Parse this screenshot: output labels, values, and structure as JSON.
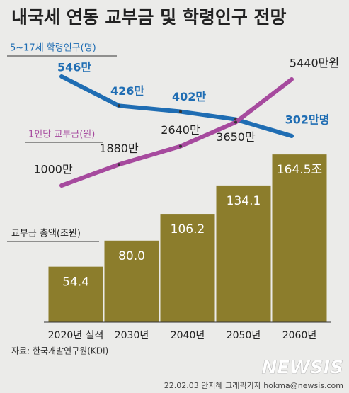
{
  "chart_data": {
    "type": "bar",
    "title": "내국세 연동 교부금 및 학령인구 전망",
    "categories": [
      "2020년 실적",
      "2030년",
      "2040년",
      "2050년",
      "2060년"
    ],
    "values": [
      54.4,
      80.0,
      106.2,
      134.1,
      164.5
    ],
    "value_labels": [
      "54.4",
      "80.0",
      "106.2",
      "134.1",
      "164.5조"
    ],
    "name": "교부금 총액(조원)",
    "color": "#8c7d2c",
    "lines": [
      {
        "name": "5~17세 학령인구(명)",
        "color": "#1f6db3",
        "values": [
          546,
          426,
          402,
          370,
          302
        ],
        "value_labels": [
          "546만",
          "426만",
          "402만",
          null,
          "302만명"
        ]
      },
      {
        "name": "1인당 교부금(원)",
        "color": "#a64a9e",
        "values": [
          1000,
          1880,
          2640,
          3650,
          5440
        ],
        "value_labels": [
          "1000만",
          "1880만",
          "2640만",
          "3650만",
          "5440만원"
        ]
      }
    ],
    "source": "자료: 한국개발연구원(KDI)",
    "credit": "22.02.03 안지혜 그래픽기자 hokma@newsis.com",
    "logo": "NEWSIS"
  }
}
